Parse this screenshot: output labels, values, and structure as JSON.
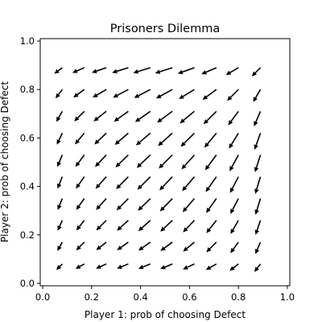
{
  "chart_data": {
    "type": "quiver",
    "title": "Prisoners Dilemma",
    "xlabel": "Player 1: prob of choosing Defect",
    "ylabel": "Player 2: prob of choosing Defect",
    "xlim": [
      -0.01,
      1.01
    ],
    "ylim": [
      -0.01,
      1.01
    ],
    "xticks": [
      0.0,
      0.2,
      0.4,
      0.6,
      0.8,
      1.0
    ],
    "yticks": [
      0.0,
      0.2,
      0.4,
      0.6,
      0.8,
      1.0
    ],
    "xtick_labels": [
      "0.0",
      "0.2",
      "0.4",
      "0.6",
      "0.8",
      "1.0"
    ],
    "ytick_labels": [
      "0.0",
      "0.2",
      "0.4",
      "0.6",
      "0.8",
      "1.0"
    ],
    "grid_x": [
      0.08,
      0.17,
      0.26,
      0.35,
      0.44,
      0.53,
      0.62,
      0.71,
      0.8,
      0.89
    ],
    "grid_y": [
      0.08,
      0.17,
      0.26,
      0.35,
      0.44,
      0.53,
      0.62,
      0.71,
      0.8,
      0.89
    ],
    "field": "dx = -x(1-x)(1+y), dy = -y(1-y)(1+x)",
    "arrow_color": "#000000",
    "grid": false
  }
}
